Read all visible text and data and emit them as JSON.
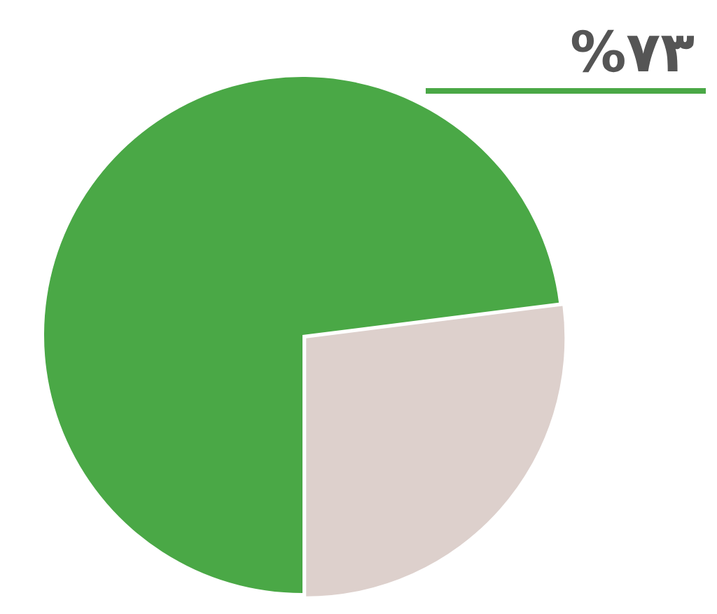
{
  "chart_data": {
    "type": "pie",
    "categories": [
      null,
      null
    ],
    "values": [
      73,
      27
    ],
    "colors": [
      "#4aa846",
      "#ddd0cc"
    ],
    "value_labels": [
      "%۷۳",
      null
    ]
  }
}
